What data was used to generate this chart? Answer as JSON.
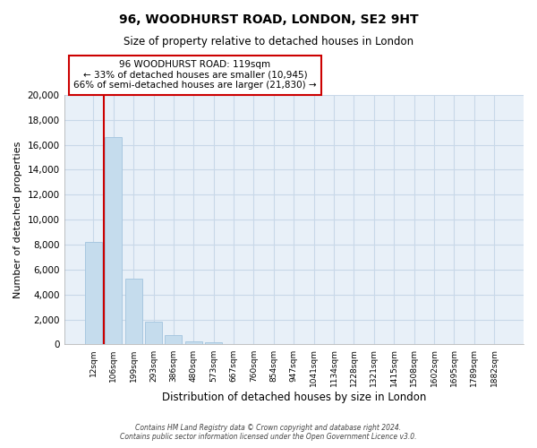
{
  "title": "96, WOODHURST ROAD, LONDON, SE2 9HT",
  "subtitle": "Size of property relative to detached houses in London",
  "xlabel": "Distribution of detached houses by size in London",
  "ylabel": "Number of detached properties",
  "bar_labels": [
    "12sqm",
    "106sqm",
    "199sqm",
    "293sqm",
    "386sqm",
    "480sqm",
    "573sqm",
    "667sqm",
    "760sqm",
    "854sqm",
    "947sqm",
    "1041sqm",
    "1134sqm",
    "1228sqm",
    "1321sqm",
    "1415sqm",
    "1508sqm",
    "1602sqm",
    "1695sqm",
    "1789sqm",
    "1882sqm"
  ],
  "bar_values": [
    8200,
    16600,
    5300,
    1800,
    750,
    250,
    150,
    0,
    0,
    0,
    0,
    0,
    0,
    0,
    0,
    0,
    0,
    0,
    0,
    0,
    0
  ],
  "bar_color": "#c5dced",
  "bar_edge_color": "#a8c8e0",
  "vline_color": "#cc0000",
  "ylim": [
    0,
    20000
  ],
  "yticks": [
    0,
    2000,
    4000,
    6000,
    8000,
    10000,
    12000,
    14000,
    16000,
    18000,
    20000
  ],
  "annotation_line1": "96 WOODHURST ROAD: 119sqm",
  "annotation_line2": "← 33% of detached houses are smaller (10,945)",
  "annotation_line3": "66% of semi-detached houses are larger (21,830) →",
  "annotation_box_color": "#ffffff",
  "annotation_box_edge": "#cc0000",
  "footer_line1": "Contains HM Land Registry data © Crown copyright and database right 2024.",
  "footer_line2": "Contains public sector information licensed under the Open Government Licence v3.0.",
  "grid_color": "#c8d8e8",
  "background_color": "#ffffff",
  "plot_bg_color": "#e8f0f8"
}
